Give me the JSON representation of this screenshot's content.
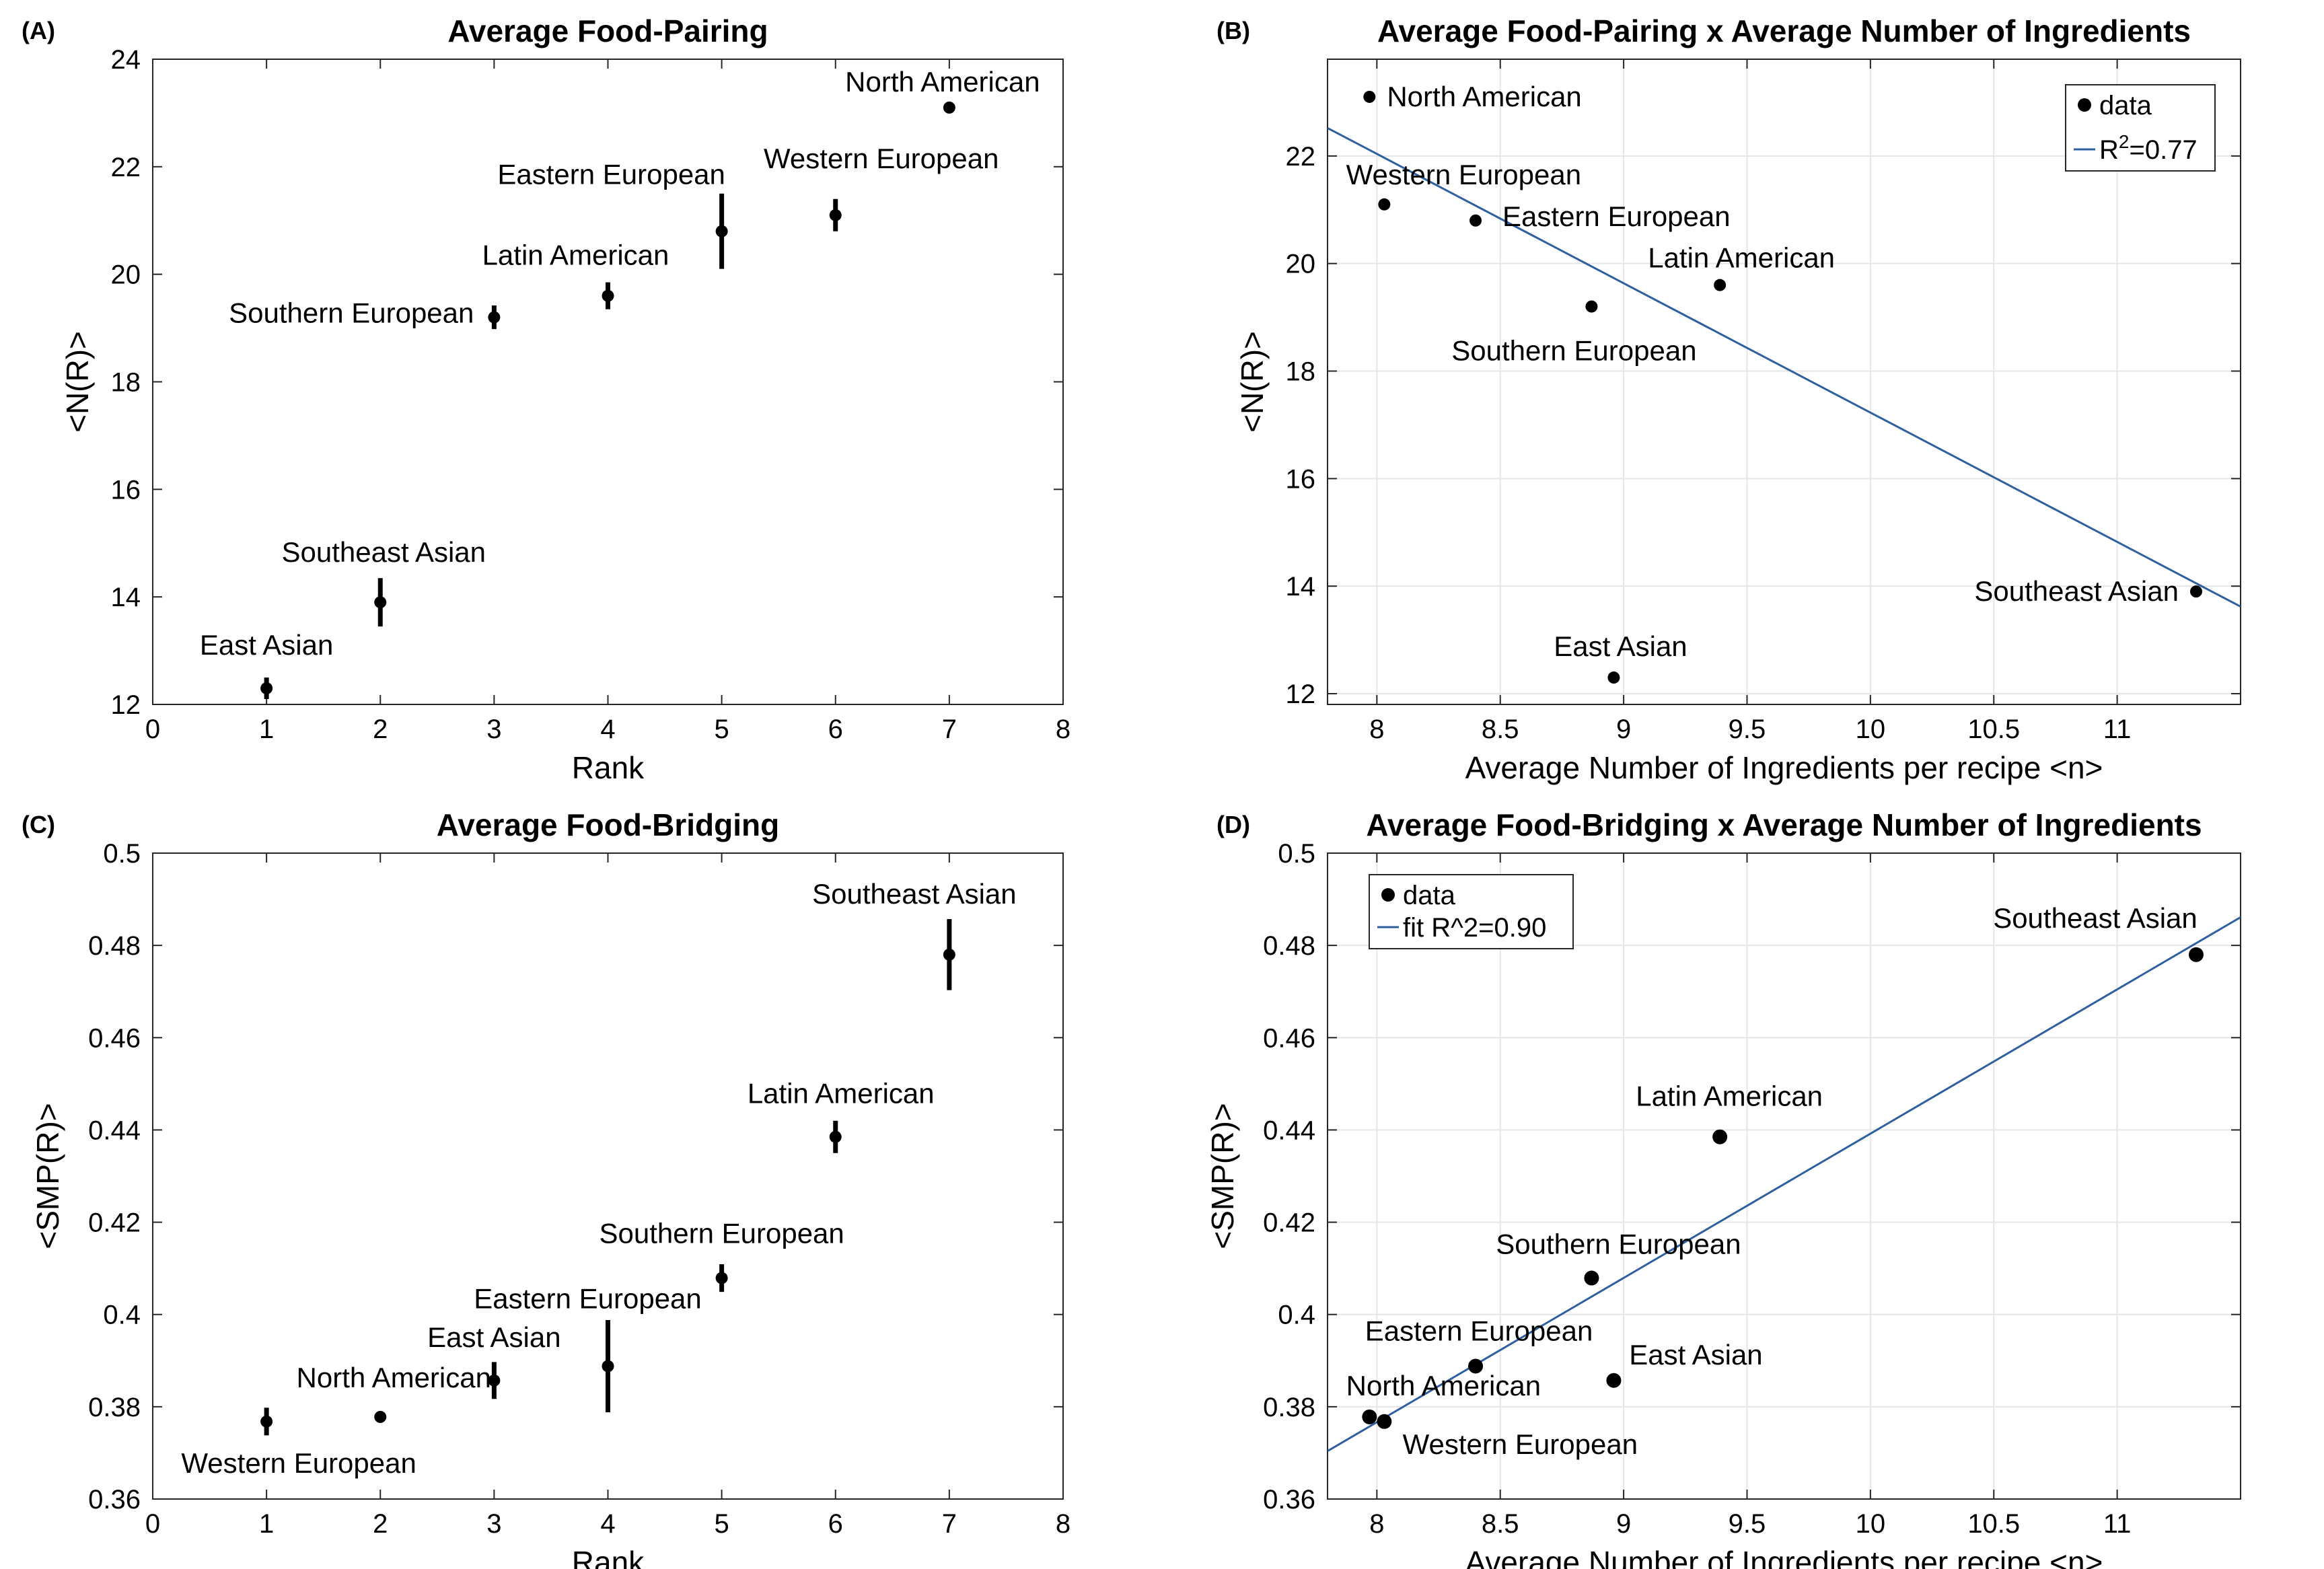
{
  "chart_data": [
    {
      "panel": "(A)",
      "type": "scatter",
      "title": "Average Food-Pairing",
      "xlabel": "Rank",
      "ylabel": "<N(R)>",
      "xlim": [
        0,
        8
      ],
      "ylim": [
        12,
        24
      ],
      "xticks": [
        0,
        1,
        2,
        3,
        4,
        5,
        6,
        7,
        8
      ],
      "yticks": [
        12,
        14,
        16,
        18,
        20,
        22,
        24
      ],
      "xtick_labels": [
        "0",
        "1",
        "2",
        "3",
        "4",
        "5",
        "6",
        "7",
        "8"
      ],
      "ytick_labels": [
        "12",
        "14",
        "16",
        "18",
        "20",
        "22",
        "24"
      ],
      "grid": false,
      "points": [
        {
          "label": "East Asian",
          "x": 1,
          "y": 12.3,
          "err": 0.2
        },
        {
          "label": "Southeast Asian",
          "x": 2,
          "y": 13.9,
          "err": 0.45
        },
        {
          "label": "Southern European",
          "x": 3,
          "y": 19.2,
          "err": 0.22
        },
        {
          "label": "Latin American",
          "x": 4,
          "y": 19.6,
          "err": 0.25
        },
        {
          "label": "Eastern European",
          "x": 5,
          "y": 20.8,
          "err": 0.7
        },
        {
          "label": "Western European",
          "x": 6,
          "y": 21.1,
          "err": 0.3
        },
        {
          "label": "North American",
          "x": 7,
          "y": 23.1,
          "err": 0.05
        }
      ]
    },
    {
      "panel": "(B)",
      "type": "scatter",
      "title": "Average Food-Pairing x Average Number of Ingredients",
      "xlabel": "Average Number of Ingredients per recipe <n>",
      "ylabel": "<N(R)>",
      "xlim": [
        7.8,
        11.5
      ],
      "ylim": [
        11.8,
        23.8
      ],
      "xticks": [
        8,
        8.5,
        9,
        9.5,
        10,
        10.5,
        11
      ],
      "yticks": [
        12,
        14,
        16,
        18,
        20,
        22
      ],
      "xtick_labels": [
        "8",
        "8.5",
        "9",
        "9.5",
        "10",
        "10.5",
        "11"
      ],
      "ytick_labels": [
        "12",
        "14",
        "16",
        "18",
        "20",
        "22"
      ],
      "grid": true,
      "legend": {
        "position": "top-right",
        "data_label": "data",
        "fit_label_prefix": "R",
        "fit_label_sup": "2",
        "fit_label_suffix": "=0.77"
      },
      "fit": {
        "x": [
          7.8,
          11.5
        ],
        "y": [
          22.52,
          13.62
        ]
      },
      "points": [
        {
          "label": "North American",
          "x": 7.97,
          "y": 23.1
        },
        {
          "label": "Western European",
          "x": 8.03,
          "y": 21.1
        },
        {
          "label": "Eastern European",
          "x": 8.4,
          "y": 20.8
        },
        {
          "label": "Southern European",
          "x": 8.87,
          "y": 19.2
        },
        {
          "label": "Latin American",
          "x": 9.39,
          "y": 19.6
        },
        {
          "label": "East Asian",
          "x": 8.96,
          "y": 12.3
        },
        {
          "label": "Southeast Asian",
          "x": 11.32,
          "y": 13.9
        }
      ]
    },
    {
      "panel": "(C)",
      "type": "scatter",
      "title": "Average Food-Bridging",
      "xlabel": "Rank",
      "ylabel": "<SMP(R)>",
      "xlim": [
        0,
        8
      ],
      "ylim": [
        0.36,
        0.5
      ],
      "xticks": [
        0,
        1,
        2,
        3,
        4,
        5,
        6,
        7,
        8
      ],
      "yticks": [
        0.36,
        0.38,
        0.4,
        0.42,
        0.44,
        0.46,
        0.48,
        0.5
      ],
      "xtick_labels": [
        "0",
        "1",
        "2",
        "3",
        "4",
        "5",
        "6",
        "7",
        "8"
      ],
      "ytick_labels": [
        "0.36",
        "0.38",
        "0.4",
        "0.42",
        "0.44",
        "0.46",
        "0.48",
        "0.5"
      ],
      "grid": false,
      "points": [
        {
          "label": "Western European",
          "x": 1,
          "y": 0.3768,
          "err": 0.003
        },
        {
          "label": "North American",
          "x": 2,
          "y": 0.3778,
          "err": 0.0004
        },
        {
          "label": "East Asian",
          "x": 3,
          "y": 0.3857,
          "err": 0.004
        },
        {
          "label": "Eastern European",
          "x": 4,
          "y": 0.3888,
          "err": 0.01
        },
        {
          "label": "Southern European",
          "x": 5,
          "y": 0.4079,
          "err": 0.003
        },
        {
          "label": "Latin American",
          "x": 6,
          "y": 0.4385,
          "err": 0.0035
        },
        {
          "label": "Southeast Asian",
          "x": 7,
          "y": 0.478,
          "err": 0.0077
        }
      ]
    },
    {
      "panel": "(D)",
      "type": "scatter",
      "title": "Average Food-Bridging x Average Number of Ingredients",
      "xlabel": "Average Number of Ingredients per recipe <n>",
      "ylabel": "<SMP(R)>",
      "xlim": [
        7.8,
        11.5
      ],
      "ylim": [
        0.36,
        0.5
      ],
      "xticks": [
        8,
        8.5,
        9,
        9.5,
        10,
        10.5,
        11
      ],
      "yticks": [
        0.36,
        0.38,
        0.4,
        0.42,
        0.44,
        0.46,
        0.48,
        0.5
      ],
      "xtick_labels": [
        "8",
        "8.5",
        "9",
        "9.5",
        "10",
        "10.5",
        "11"
      ],
      "ytick_labels": [
        "0.36",
        "0.38",
        "0.4",
        "0.42",
        "0.44",
        "0.46",
        "0.48",
        "0.5"
      ],
      "grid": true,
      "legend": {
        "position": "top-left",
        "data_label": "data",
        "fit_label": "fit R^2=0.90"
      },
      "fit": {
        "x": [
          7.8,
          11.5
        ],
        "y": [
          0.3704,
          0.4861
        ]
      },
      "points": [
        {
          "label": "North American",
          "x": 7.97,
          "y": 0.3778
        },
        {
          "label": "Western European",
          "x": 8.03,
          "y": 0.3768
        },
        {
          "label": "Eastern European",
          "x": 8.4,
          "y": 0.3888
        },
        {
          "label": "East Asian",
          "x": 8.96,
          "y": 0.3857
        },
        {
          "label": "Southern European",
          "x": 8.87,
          "y": 0.4079
        },
        {
          "label": "Latin American",
          "x": 9.39,
          "y": 0.4385
        },
        {
          "label": "Southeast Asian",
          "x": 11.32,
          "y": 0.478
        }
      ]
    }
  ],
  "colors": {
    "axis": "#262626",
    "grid": "#e6e6e6",
    "marker": "#000000",
    "fit": "#2e5fa1"
  }
}
